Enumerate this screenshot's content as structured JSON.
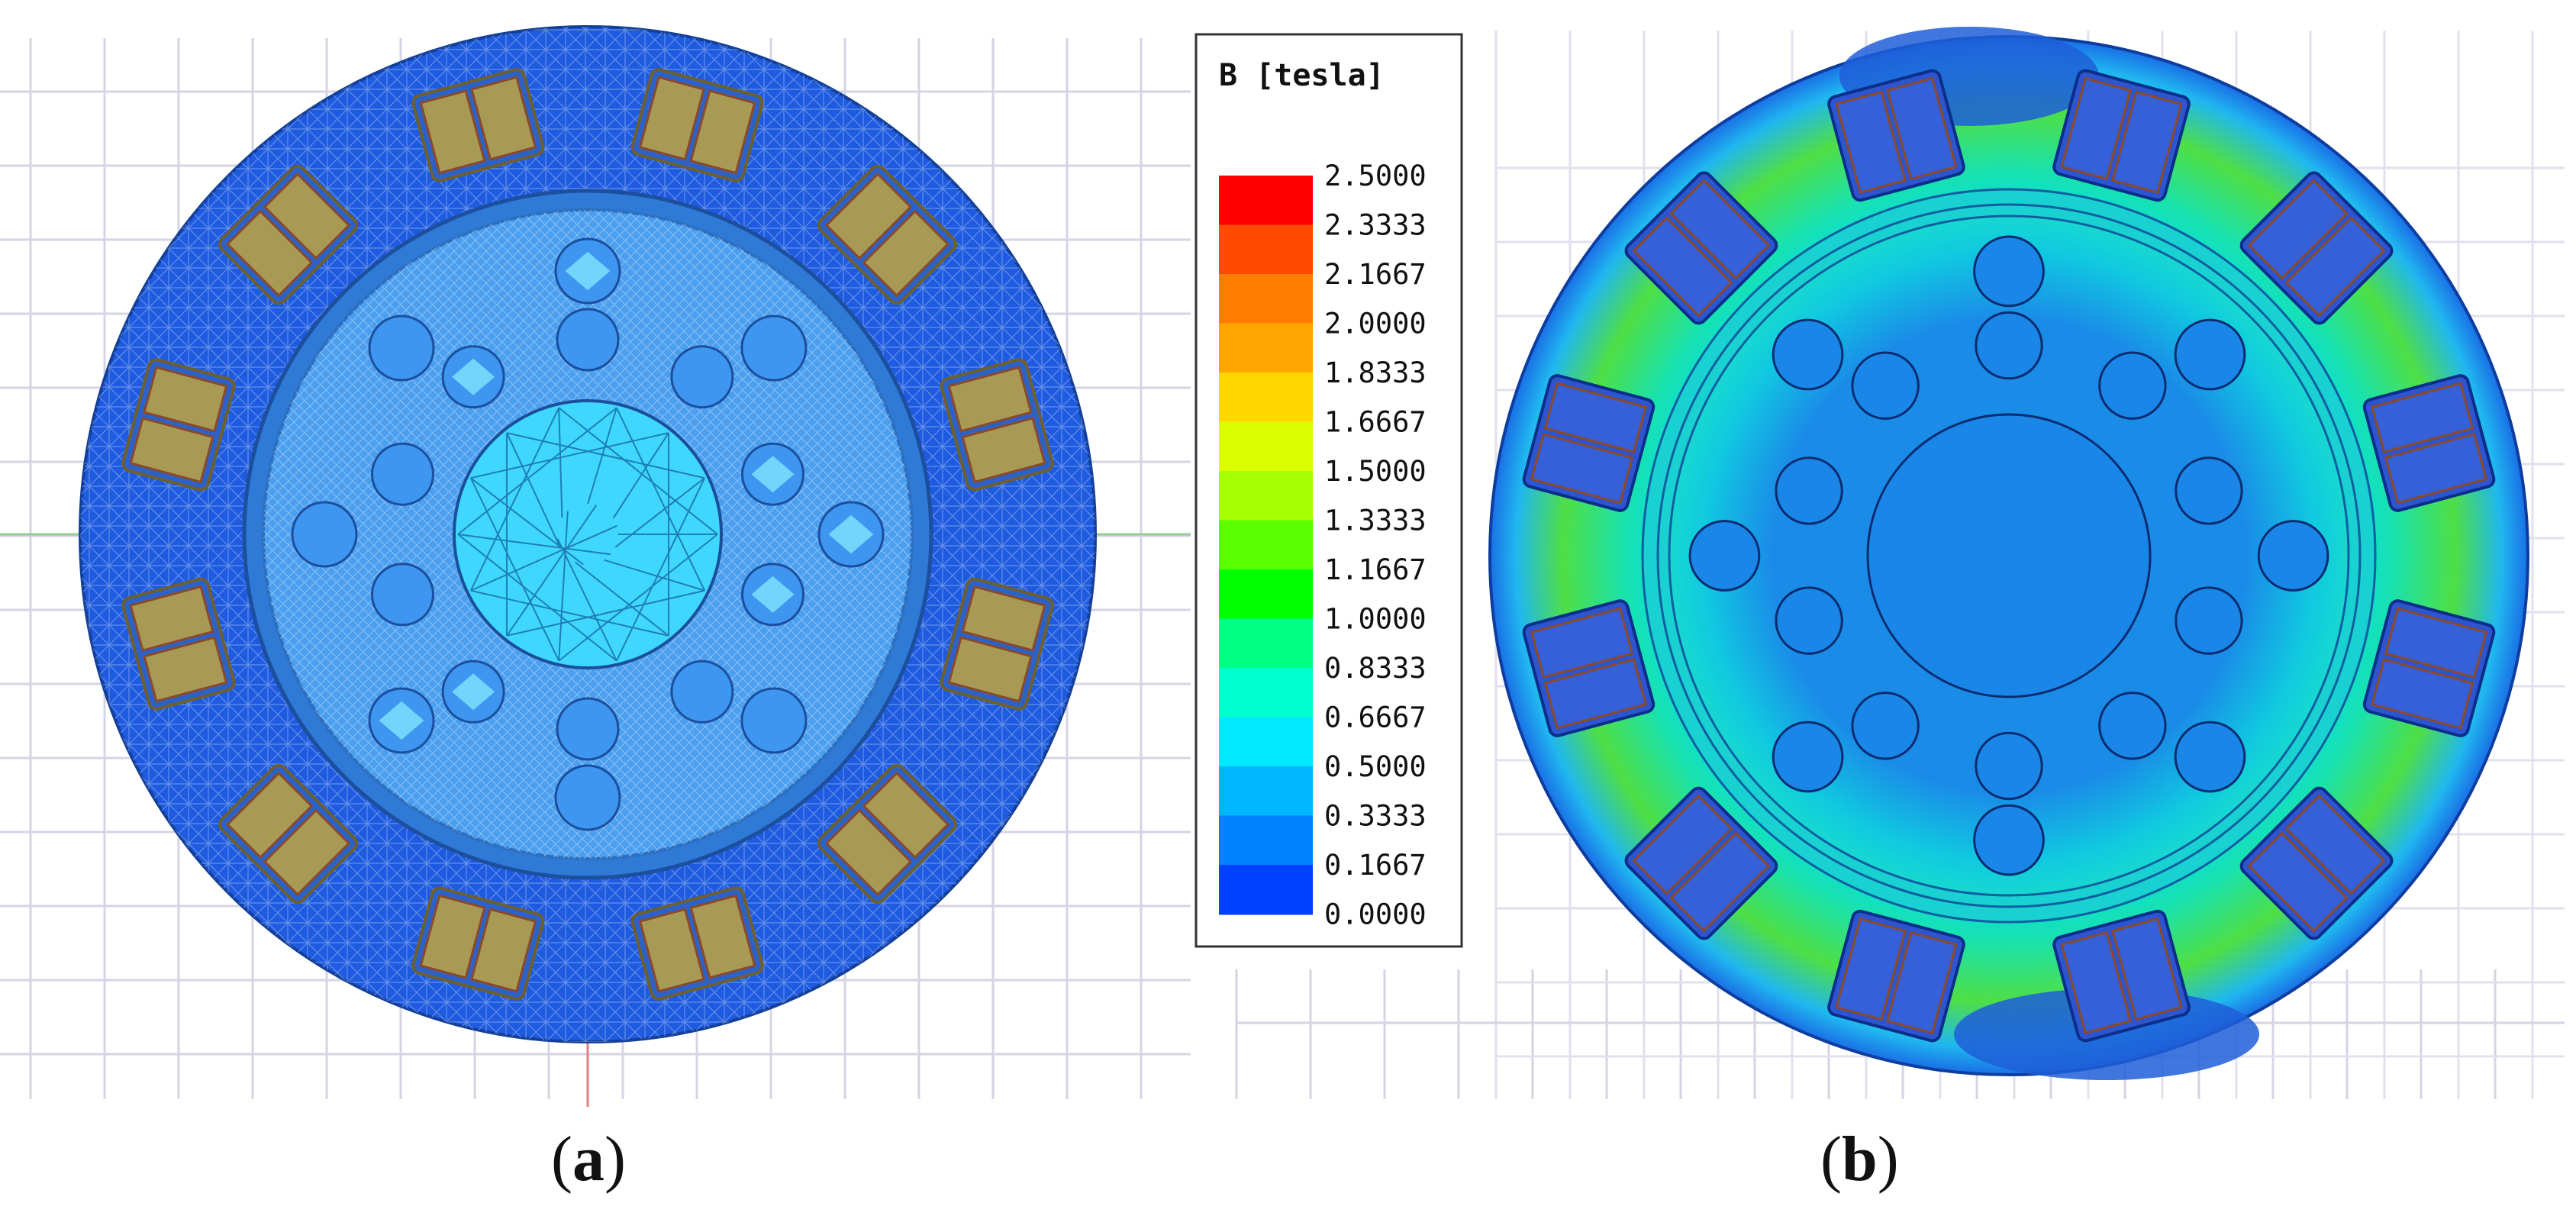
{
  "legend": {
    "title": "B [tesla]",
    "levels": [
      {
        "label": "2.5000",
        "color": "#ff0000"
      },
      {
        "label": "2.3333",
        "color": "#ff4a00"
      },
      {
        "label": "2.1667",
        "color": "#ff7d00"
      },
      {
        "label": "2.0000",
        "color": "#ffa500"
      },
      {
        "label": "1.8333",
        "color": "#ffd700"
      },
      {
        "label": "1.6667",
        "color": "#daff00"
      },
      {
        "label": "1.5000",
        "color": "#a5ff00"
      },
      {
        "label": "1.3333",
        "color": "#5cff00"
      },
      {
        "label": "1.1667",
        "color": "#00ff00"
      },
      {
        "label": "1.0000",
        "color": "#00ff85"
      },
      {
        "label": "0.8333",
        "color": "#00ffcf"
      },
      {
        "label": "0.6667",
        "color": "#00e9ff"
      },
      {
        "label": "0.5000",
        "color": "#00b7ff"
      },
      {
        "label": "0.3333",
        "color": "#0082ff"
      },
      {
        "label": "0.1667",
        "color": "#0041ff"
      },
      {
        "label": "0.0000",
        "color": "#0000ff"
      }
    ]
  },
  "captions": {
    "a": {
      "open": "(",
      "letter": "a",
      "close": ")"
    },
    "b": {
      "open": "(",
      "letter": "b",
      "close": ")"
    }
  },
  "panels": {
    "a": {
      "view": "mesh",
      "stator_color": "#1e5be0",
      "rotor_color": "#4a9ff0",
      "core_color": "#3fd7ff",
      "coil_color": "#a89a55"
    },
    "b": {
      "view": "field",
      "stator_color": "#26c3d8",
      "rotor_color": "#1a86e8",
      "core_color": "#1a86e8",
      "coil_color": "#2d55d0"
    },
    "slot_count": 12,
    "rotor_bar_count": 18
  }
}
